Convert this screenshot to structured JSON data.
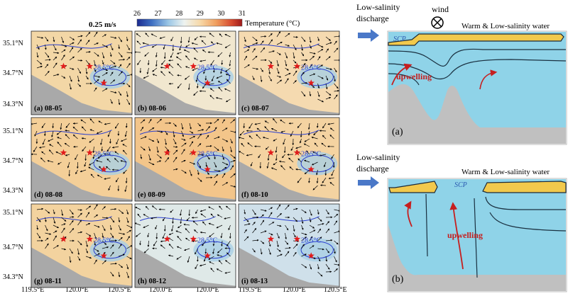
{
  "scale_label": "0.25 m/s",
  "colorbar": {
    "ticks": [
      "26",
      "27",
      "28",
      "29",
      "30",
      "31"
    ],
    "title": "Temperature (°C)",
    "colors": [
      "#1b2a8f",
      "#3e6fc2",
      "#9cc7e6",
      "#eef3f0",
      "#f7d9a9",
      "#f0a060",
      "#d64a2f",
      "#9e1a1a"
    ]
  },
  "lat_ticks": [
    "35.1°N",
    "34.7°N",
    "34.3°N"
  ],
  "lon_ticks": [
    "119.5°E",
    "120.0°E",
    "120.5°E"
  ],
  "panels": [
    {
      "label": "(a) 08-05",
      "bg": "#f3d7a6",
      "contour": "28.5°C"
    },
    {
      "label": "(b) 08-06",
      "bg": "#f1e7cf",
      "contour": "28.5°C"
    },
    {
      "label": "(c) 08-07",
      "bg": "#f5dab0",
      "contour": "28.5°C"
    },
    {
      "label": "(d) 08-08",
      "bg": "#f4cf98",
      "contour": "28.5°C"
    },
    {
      "label": "(e) 08-09",
      "bg": "#f3c58a",
      "contour": "28.5°C"
    },
    {
      "label": "(f) 08-10",
      "bg": "#f4d3a1",
      "contour": "28.5°C"
    },
    {
      "label": "(g) 08-11",
      "bg": "#f3d39f",
      "contour": "28.5°C"
    },
    {
      "label": "(h) 08-12",
      "bg": "#dfe9e8",
      "contour": "28.5°C"
    },
    {
      "label": "(i) 08-13",
      "bg": "#cfe0ea",
      "contour": "28.5°C"
    }
  ],
  "schematic_a": {
    "discharge_label": "Low-salinity\ndischarge",
    "wind_label": "wind",
    "warm_label": "Warm & Low-salinity water",
    "scp_label": "SCP",
    "upwelling_label": "upwelling",
    "panel_label": "(a)"
  },
  "schematic_b": {
    "discharge_label": "Low-salinity\ndischarge",
    "warm_label": "Warm & Low-salinity water",
    "scp_label": "SCP",
    "upwelling_label": "upwelling",
    "panel_label": "(b)"
  }
}
